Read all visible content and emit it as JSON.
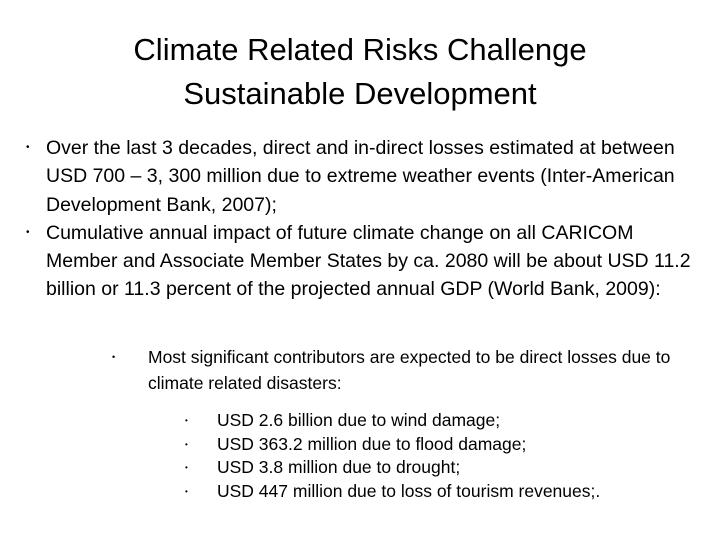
{
  "title": {
    "line1": "Climate Related Risks Challenge",
    "line2": "Sustainable Development"
  },
  "bullets": [
    {
      "text": "Over the last 3 decades, direct and in-direct losses estimated at between USD 700 – 3, 300 million due to extreme weather events (Inter-American Development Bank, 2007);"
    },
    {
      "text": "Cumulative annual impact of future climate change on all CARICOM Member and Associate Member States by ca. 2080 will be about USD 11.2 billion or 11.3 percent of the projected annual GDP (World Bank, 2009):"
    }
  ],
  "sub_bullet": {
    "text": "Most significant contributors are expected to be direct losses due to climate related disasters:"
  },
  "sub_sub_bullets": [
    {
      "text": "USD 2.6 billion due to wind damage;"
    },
    {
      "text": "USD 363.2 million due to flood damage;"
    },
    {
      "text": "USD 3.8 million due to drought;"
    },
    {
      "text": "USD 447 million due to loss of tourism revenues;."
    }
  ],
  "bullet_glyph": "•"
}
